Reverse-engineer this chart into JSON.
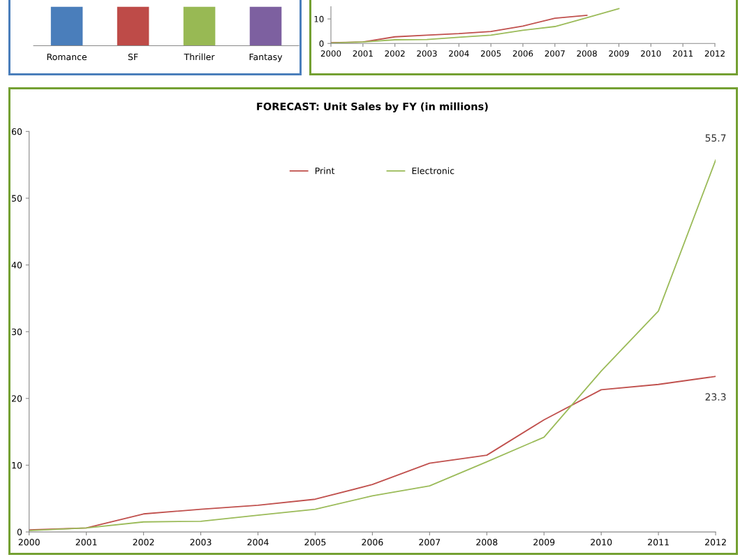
{
  "chart_data": [
    {
      "type": "other",
      "categories": [
        "Romance",
        "SF",
        "Thriller",
        "Fantasy"
      ],
      "colors": [
        "#4a7ebb",
        "#be4b48",
        "#98b954",
        "#7d60a0"
      ]
    },
    {
      "type": "line",
      "xlim": [
        2000,
        2012
      ],
      "xticks": [
        2000,
        2001,
        2002,
        2003,
        2004,
        2005,
        2006,
        2007,
        2008,
        2009,
        2010,
        2011,
        2012
      ],
      "ylim": [
        0,
        15
      ],
      "yticks": [
        0,
        10
      ],
      "grid": false,
      "legend": false,
      "series": [
        {
          "color": "#c0504d",
          "x": [
            2000,
            2001,
            2002,
            2003,
            2004,
            2005,
            2006,
            2007,
            2008
          ],
          "values": [
            0.3,
            0.6,
            2.7,
            3.4,
            4.0,
            4.9,
            7.1,
            10.3,
            11.5
          ]
        },
        {
          "color": "#9bbb59",
          "x": [
            2000,
            2001,
            2002,
            2003,
            2004,
            2005,
            2006,
            2007,
            2008,
            2009
          ],
          "values": [
            0.2,
            0.6,
            1.5,
            1.6,
            2.5,
            3.4,
            5.4,
            6.9,
            10.5,
            14.2
          ]
        }
      ]
    },
    {
      "type": "line",
      "title": "FORECAST: Unit Sales by FY (in millions)",
      "x": [
        2000,
        2001,
        2002,
        2003,
        2004,
        2005,
        2006,
        2007,
        2008,
        2009,
        2010,
        2011,
        2012
      ],
      "xlim": [
        2000,
        2012
      ],
      "xticks": [
        2000,
        2001,
        2002,
        2003,
        2004,
        2005,
        2006,
        2007,
        2008,
        2009,
        2010,
        2011,
        2012
      ],
      "ylim": [
        0,
        60
      ],
      "yticks": [
        0,
        10,
        20,
        30,
        40,
        50,
        60
      ],
      "grid": false,
      "legend": "top",
      "series": [
        {
          "name": "Print",
          "color": "#c0504d",
          "values": [
            0.3,
            0.6,
            2.7,
            3.4,
            4.0,
            4.9,
            7.1,
            10.3,
            11.5,
            16.8,
            21.3,
            22.1,
            23.3
          ],
          "value_labels": [
            null,
            null,
            null,
            null,
            null,
            null,
            null,
            null,
            null,
            null,
            null,
            null,
            "23.3"
          ]
        },
        {
          "name": "Electronic",
          "color": "#9bbb59",
          "values": [
            0.2,
            0.6,
            1.5,
            1.6,
            2.5,
            3.4,
            5.4,
            6.9,
            10.5,
            14.2,
            24.1,
            33.1,
            55.7
          ],
          "value_labels": [
            null,
            null,
            null,
            null,
            null,
            null,
            null,
            null,
            null,
            null,
            null,
            null,
            "55.7"
          ]
        }
      ]
    }
  ]
}
